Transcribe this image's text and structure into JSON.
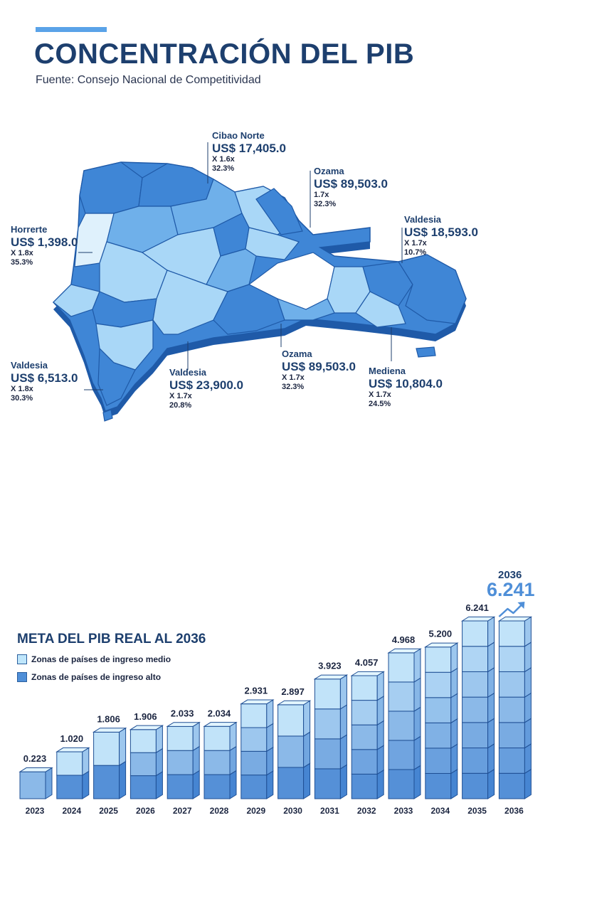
{
  "header": {
    "title": "CONCENTRACIÓN DEL PIB",
    "source": "Fuente: Consejo Nacional de Competitividad"
  },
  "map": {
    "regions": [
      {
        "name": "Cibao Norte",
        "value": "US$ 17,405.0",
        "multiplier": "X 1.6x",
        "share": "32.3%"
      },
      {
        "name": "Ozama",
        "value": "US$ 89,503.0",
        "multiplier": "1.7x",
        "share": "32.3%"
      },
      {
        "name": "Horrerte",
        "value": "US$ 1,398.0",
        "multiplier": "X 1.8x",
        "share": "35.3%"
      },
      {
        "name": "Valdesia",
        "value": "US$ 18,593.0",
        "multiplier": "X 1.7x",
        "share": "10.7%"
      },
      {
        "name": "Valdesia",
        "value": "US$ 6,513.0",
        "multiplier": "X 1.8x",
        "share": "30.3%"
      },
      {
        "name": "Valdesia",
        "value": "US$ 23,900.0",
        "multiplier": "X 1.7x",
        "share": "20.8%"
      },
      {
        "name": "Ozama",
        "value": "US$ 89,503.0",
        "multiplier": "X 1.7x",
        "share": "32.3%"
      },
      {
        "name": "Mediena",
        "value": "US$ 10,804.0",
        "multiplier": "X 1.7x",
        "share": "24.5%"
      }
    ],
    "colors": {
      "dark": "#3f86d6",
      "mid": "#6fb0ea",
      "light": "#a9d7f7",
      "lightest": "#dff1fc",
      "edge": "#1f5aa8"
    }
  },
  "chart_data": {
    "type": "bar",
    "title": "META DEL PIB REAL AL 2036",
    "categories": [
      "2023",
      "2024",
      "2025",
      "2026",
      "2027",
      "2028",
      "2029",
      "2030",
      "2031",
      "2032",
      "2033",
      "2034",
      "2035",
      "2036"
    ],
    "value_labels": [
      "0.223",
      "1.020",
      "1.806",
      "1.906",
      "2.033",
      "2.034",
      "2.931",
      "2.897",
      "3.923",
      "4.057",
      "4.968",
      "5.200",
      "6.241",
      ""
    ],
    "values": [
      0.223,
      1.02,
      1.806,
      1.906,
      2.033,
      2.034,
      2.931,
      2.897,
      3.923,
      4.057,
      4.968,
      5.2,
      6.241,
      6.241
    ],
    "legend": [
      "Zonas de países de ingreso medio",
      "Zonas de países de ingreso alto"
    ],
    "legend_placement": "top-left",
    "highlight": {
      "year": "2036",
      "value": "6.241"
    },
    "colors": {
      "medio": "#bfe6fb",
      "alto": "#4f8fd8",
      "edge": "#1f4f94"
    }
  }
}
